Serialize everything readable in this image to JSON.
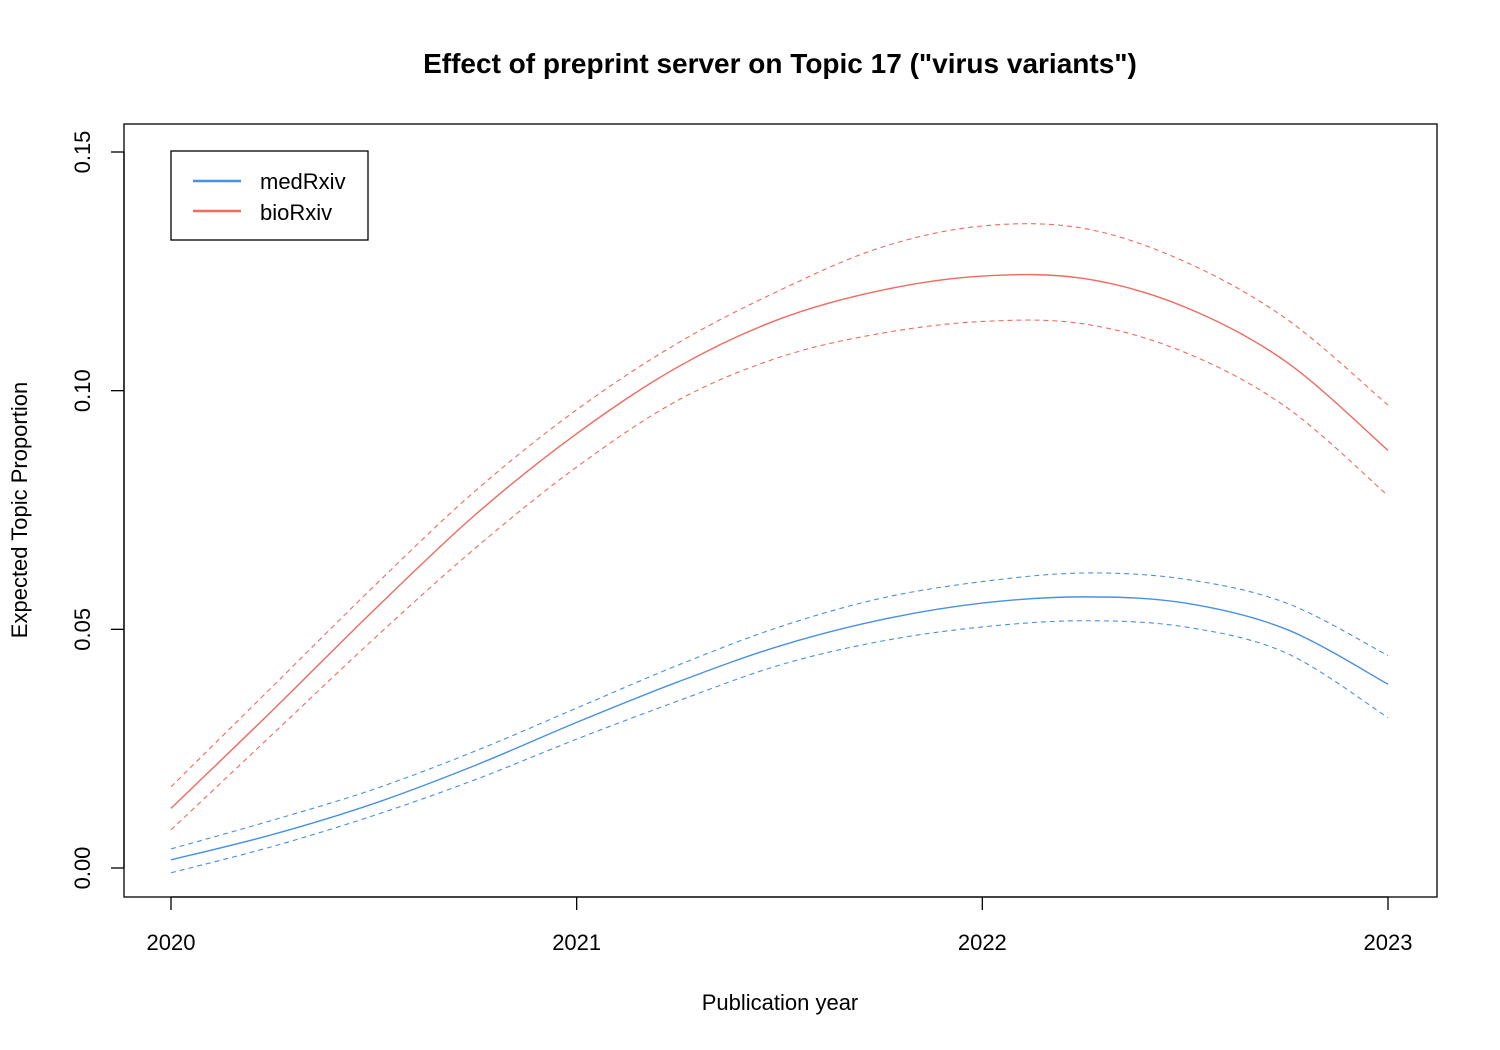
{
  "chart_data": {
    "type": "line",
    "title": "Effect of preprint server on Topic 17 (\"virus variants\")",
    "xlabel": "Publication year",
    "ylabel": "Expected Topic Proportion",
    "xlim": [
      2020,
      2023
    ],
    "ylim": [
      0,
      0.15
    ],
    "xticks": [
      2020,
      2021,
      2022,
      2023
    ],
    "yticks": [
      0.0,
      0.05,
      0.1,
      0.15
    ],
    "ytick_labels": [
      "0.00",
      "0.05",
      "0.10",
      "0.15"
    ],
    "grid": false,
    "legend_position": "top-left",
    "x": [
      2020.0,
      2020.25,
      2020.5,
      2020.75,
      2021.0,
      2021.25,
      2021.5,
      2021.75,
      2022.0,
      2022.25,
      2022.5,
      2022.75,
      2023.0
    ],
    "series": [
      {
        "name": "medRxiv",
        "color": "#4a90e2",
        "values": [
          0.0017,
          0.007,
          0.0135,
          0.0215,
          0.0305,
          0.039,
          0.0465,
          0.052,
          0.0555,
          0.0568,
          0.0555,
          0.05,
          0.0385
        ],
        "lower": [
          -0.001,
          0.0045,
          0.011,
          0.0185,
          0.027,
          0.035,
          0.0425,
          0.0475,
          0.0505,
          0.0518,
          0.0505,
          0.045,
          0.0315
        ],
        "upper": [
          0.004,
          0.01,
          0.0165,
          0.0245,
          0.0335,
          0.0425,
          0.0505,
          0.0565,
          0.06,
          0.0618,
          0.0605,
          0.0555,
          0.0445
        ]
      },
      {
        "name": "bioRxiv",
        "color": "#ef6a5f",
        "values": [
          0.0125,
          0.033,
          0.054,
          0.074,
          0.091,
          0.105,
          0.115,
          0.121,
          0.124,
          0.1235,
          0.1175,
          0.106,
          0.0875
        ],
        "lower": [
          0.008,
          0.028,
          0.048,
          0.067,
          0.084,
          0.098,
          0.107,
          0.112,
          0.1145,
          0.114,
          0.108,
          0.0965,
          0.078
        ],
        "upper": [
          0.017,
          0.038,
          0.059,
          0.079,
          0.096,
          0.11,
          0.121,
          0.13,
          0.1345,
          0.134,
          0.127,
          0.115,
          0.097
        ]
      }
    ]
  }
}
